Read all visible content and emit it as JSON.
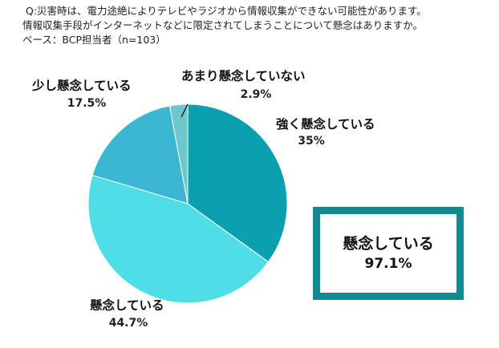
{
  "question": {
    "line1": "Q:災害時は、電力途絶によりテレビやラジオから情報収集ができない可能性があります。",
    "line2": "情報収集手段がインターネットなどに限定されてしまうことについて懸念はありますか。",
    "base": "ベース：BCP担当者（n=103）"
  },
  "chart_data": {
    "type": "pie",
    "start": "12 o'clock, clockwise",
    "slices": [
      {
        "label": "強く懸念している",
        "value": 35,
        "display": "35%",
        "color": "#0aa0b0"
      },
      {
        "label": "懸念している",
        "value": 44.7,
        "display": "44.7%",
        "color": "#4fdde6"
      },
      {
        "label": "少し懸念している",
        "value": 17.5,
        "display": "17.5%",
        "color": "#3bb6d3"
      },
      {
        "label": "あまり懸念していない",
        "value": 2.9,
        "display": "2.9%",
        "color": "#6ec8cb"
      }
    ]
  },
  "summary_box": {
    "label": "懸念している",
    "value": "97.1%",
    "border_color": "#138a8f"
  }
}
